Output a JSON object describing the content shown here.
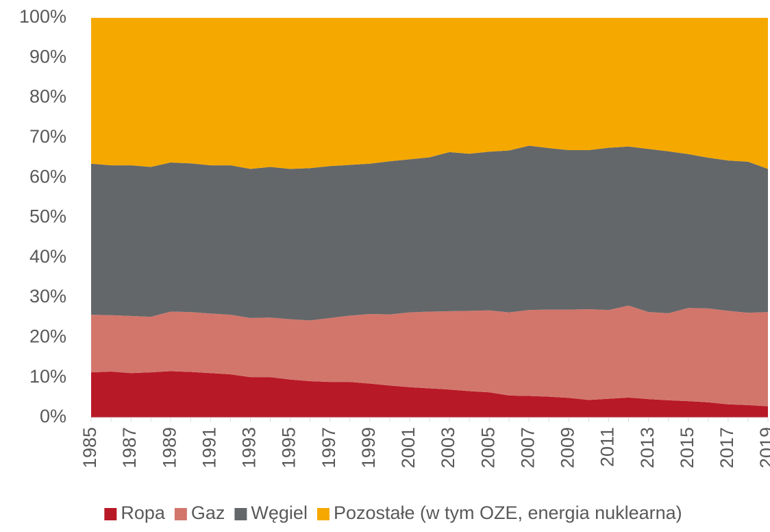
{
  "chart_data": {
    "type": "stacked_area",
    "categories": [
      "1985",
      null,
      "1987",
      null,
      "1989",
      null,
      "1991",
      null,
      "1993",
      null,
      "1995",
      null,
      "1997",
      null,
      "1999",
      null,
      "2001",
      null,
      "2003",
      null,
      "2005",
      null,
      "2007",
      null,
      "2009",
      null,
      "2011",
      null,
      "2013",
      null,
      "2015",
      null,
      "2017",
      null,
      "2019"
    ],
    "series": [
      {
        "name": "Ropa",
        "color": "#b81926",
        "values": [
          11.3,
          11.5,
          11.1,
          11.3,
          11.6,
          11.4,
          11.1,
          10.8,
          10.1,
          10.1,
          9.5,
          9.1,
          8.9,
          8.9,
          8.5,
          8.0,
          7.6,
          7.3,
          7.0,
          6.6,
          6.3,
          5.5,
          5.4,
          5.2,
          4.9,
          4.4,
          4.7,
          5.0,
          4.6,
          4.3,
          4.1,
          3.8,
          3.3,
          3.1,
          2.8
        ]
      },
      {
        "name": "Gaz",
        "color": "#d2766b",
        "values": [
          14.4,
          14.1,
          14.3,
          13.9,
          14.9,
          15.0,
          14.9,
          14.9,
          14.8,
          14.9,
          15.1,
          15.2,
          16.0,
          16.6,
          17.4,
          17.8,
          18.7,
          19.2,
          19.6,
          20.1,
          20.5,
          20.8,
          21.5,
          21.8,
          22.1,
          22.7,
          22.2,
          23.0,
          21.8,
          21.8,
          23.3,
          23.5,
          23.4,
          23.1,
          23.6
        ]
      },
      {
        "name": "Węgiel",
        "color": "#63676a",
        "values": [
          37.8,
          37.5,
          37.7,
          37.5,
          37.3,
          37.2,
          37.1,
          37.4,
          37.3,
          37.7,
          37.6,
          38.1,
          38.0,
          37.7,
          37.6,
          38.3,
          38.3,
          38.6,
          39.8,
          39.3,
          39.7,
          40.5,
          41.1,
          40.4,
          39.9,
          39.8,
          40.6,
          39.8,
          40.8,
          40.5,
          38.5,
          37.7,
          37.6,
          37.8,
          35.8
        ]
      },
      {
        "name": "Pozostałe (w tym OZE, energia nuklearna)",
        "color": "#f5a800",
        "values": [
          36.5,
          36.9,
          36.9,
          37.3,
          36.2,
          36.4,
          36.9,
          36.9,
          37.8,
          37.3,
          37.8,
          37.6,
          37.1,
          36.8,
          36.5,
          35.9,
          35.4,
          34.9,
          33.6,
          34.0,
          33.5,
          33.2,
          32.0,
          32.6,
          33.1,
          33.1,
          32.5,
          32.2,
          32.8,
          33.4,
          34.1,
          35.0,
          35.7,
          36.0,
          37.8
        ]
      }
    ],
    "ylim": [
      0,
      100
    ],
    "yticks": [
      {
        "value": 0,
        "label": "0%"
      },
      {
        "value": 10,
        "label": "10%"
      },
      {
        "value": 20,
        "label": "20%"
      },
      {
        "value": 30,
        "label": "30%"
      },
      {
        "value": 40,
        "label": "40%"
      },
      {
        "value": 50,
        "label": "50%"
      },
      {
        "value": 60,
        "label": "60%"
      },
      {
        "value": 70,
        "label": "70%"
      },
      {
        "value": 80,
        "label": "80%"
      },
      {
        "value": 90,
        "label": "90%"
      },
      {
        "value": 100,
        "label": "100%"
      }
    ],
    "legend": "bottom"
  }
}
